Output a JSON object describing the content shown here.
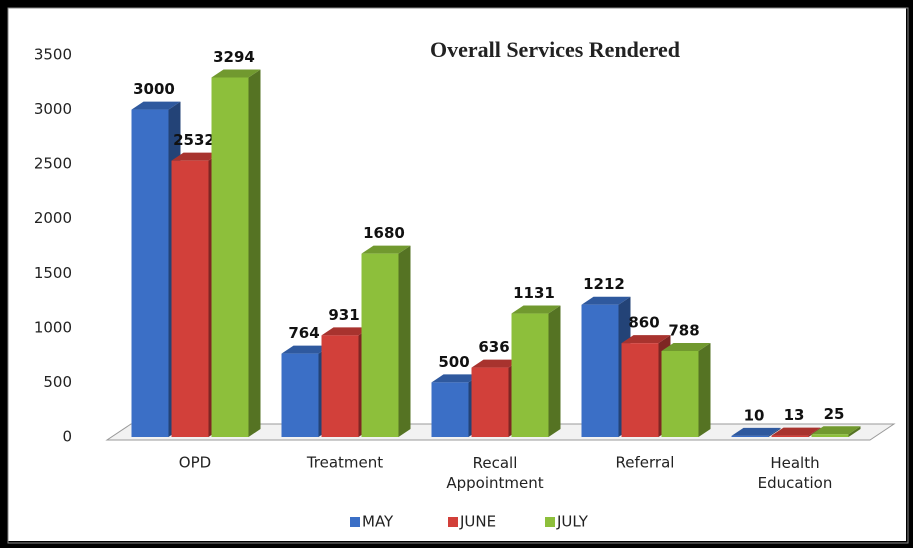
{
  "chart_data": {
    "type": "bar",
    "title": "Overall Services Rendered",
    "categories": [
      "OPD",
      "Treatment",
      "Recall Appointment",
      "Referral",
      "Health Education"
    ],
    "series": [
      {
        "name": "MAY",
        "color": "#3b6fc6",
        "values": [
          3000,
          764,
          500,
          1212,
          10
        ]
      },
      {
        "name": "JUNE",
        "color": "#d2403a",
        "values": [
          2532,
          931,
          636,
          860,
          13
        ]
      },
      {
        "name": "JULY",
        "color": "#8dbf3b",
        "values": [
          3294,
          1680,
          1131,
          788,
          25
        ]
      }
    ],
    "ylim": [
      0,
      3500
    ],
    "yticks": [
      0,
      500,
      1000,
      1500,
      2000,
      2500,
      3000,
      3500
    ],
    "legend": "bottom"
  }
}
